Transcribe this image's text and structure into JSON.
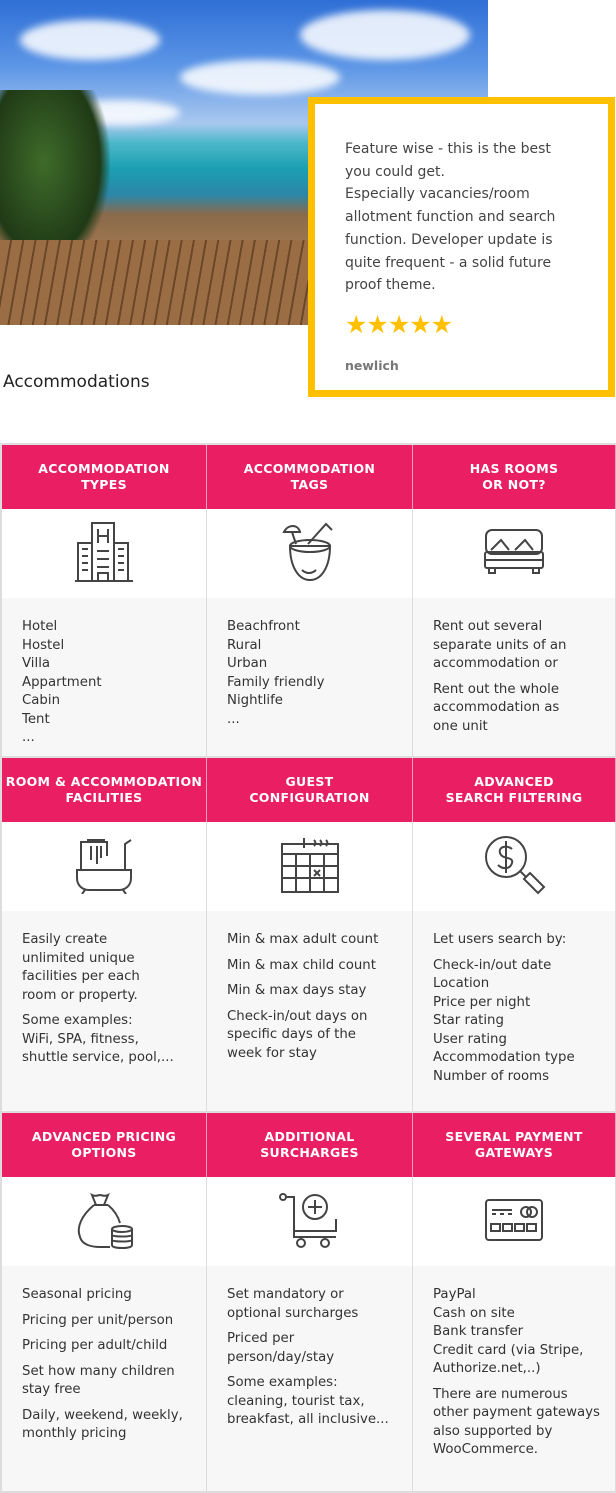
{
  "testimonial": {
    "text": "Feature wise - this is the best you could get.\nEspecially vacancies/room allotment function and search function. Developer update is quite frequent - a solid future proof theme.",
    "lines": [
      "Feature wise - this is the best",
      "you could get.",
      "Especially vacancies/room",
      "allotment function and search",
      "function. Developer update is",
      "quite frequent - a solid future",
      "proof theme."
    ],
    "rating": 5,
    "stars": "★★★★★",
    "author": "newlich"
  },
  "section_title": "Accommodations",
  "colors": {
    "accent": "#e91e63",
    "star": "#ffc000"
  },
  "rows": [
    [
      {
        "title": [
          "ACCOMMODATION",
          "TYPES"
        ],
        "icon": "hotel-building-icon",
        "groups": [
          [
            "Hotel",
            "Hostel",
            "Villa",
            "Appartment",
            "Cabin",
            "Tent",
            "..."
          ]
        ]
      },
      {
        "title": [
          "ACCOMMODATION",
          "TAGS"
        ],
        "icon": "coconut-drink-icon",
        "groups": [
          [
            "Beachfront",
            "Rural",
            "Urban",
            "Family friendly",
            "Nightlife",
            "..."
          ]
        ]
      },
      {
        "title": [
          "HAS ROOMS",
          "OR NOT?"
        ],
        "icon": "bed-icon",
        "groups": [
          [
            "Rent out several",
            "separate units of an",
            "accommodation or"
          ],
          [
            "Rent out the whole",
            "accommodation as",
            "one unit"
          ]
        ]
      }
    ],
    [
      {
        "title": [
          "ROOM & ACCOMMODATION",
          "FACILITIES"
        ],
        "icon": "bathtub-icon",
        "groups": [
          [
            "Easily create",
            "unlimited unique",
            "facilities per each",
            "room or property."
          ],
          [
            "Some examples:",
            "WiFi, SPA, fitness,",
            "shuttle service, pool,..."
          ]
        ]
      },
      {
        "title": [
          "GUEST",
          "CONFIGURATION"
        ],
        "icon": "calendar-icon",
        "groups": [
          [
            "Min & max adult count"
          ],
          [
            "Min & max child count"
          ],
          [
            "Min & max days stay"
          ],
          [
            "Check-in/out days on",
            "specific days of the",
            "week for stay"
          ]
        ]
      },
      {
        "title": [
          "ADVANCED",
          "SEARCH FILTERING"
        ],
        "icon": "dollar-search-icon",
        "groups": [
          [
            "Let users search by:"
          ],
          [
            "Check-in/out date",
            "Location",
            "Price per night",
            "Star rating",
            "User rating",
            "Accommodation type",
            "Number of rooms"
          ]
        ]
      }
    ],
    [
      {
        "title": [
          "ADVANCED PRICING",
          "OPTIONS"
        ],
        "icon": "money-bag-icon",
        "groups": [
          [
            "Seasonal pricing"
          ],
          [
            "Pricing per unit/person"
          ],
          [
            "Pricing per adult/child"
          ],
          [
            "Set how many children",
            "stay free"
          ],
          [
            "Daily, weekend, weekly,",
            "monthly pricing"
          ]
        ]
      },
      {
        "title": [
          "ADDITIONAL",
          "SURCHARGES"
        ],
        "icon": "cart-plus-icon",
        "groups": [
          [
            "Set mandatory or",
            "optional surcharges"
          ],
          [
            "Priced per",
            "person/day/stay"
          ],
          [
            "Some examples:",
            "cleaning, tourist tax,",
            "breakfast, all inclusive..."
          ]
        ]
      },
      {
        "title": [
          "SEVERAL PAYMENT",
          "GATEWAYS"
        ],
        "icon": "credit-card-icon",
        "groups": [
          [
            "PayPal",
            "Cash on site",
            "Bank transfer",
            "Credit card (via Stripe,",
            "Authorize.net,..)"
          ],
          [
            "There are numerous",
            "other payment gateways",
            "also supported by",
            "WooCommerce."
          ]
        ]
      }
    ]
  ]
}
